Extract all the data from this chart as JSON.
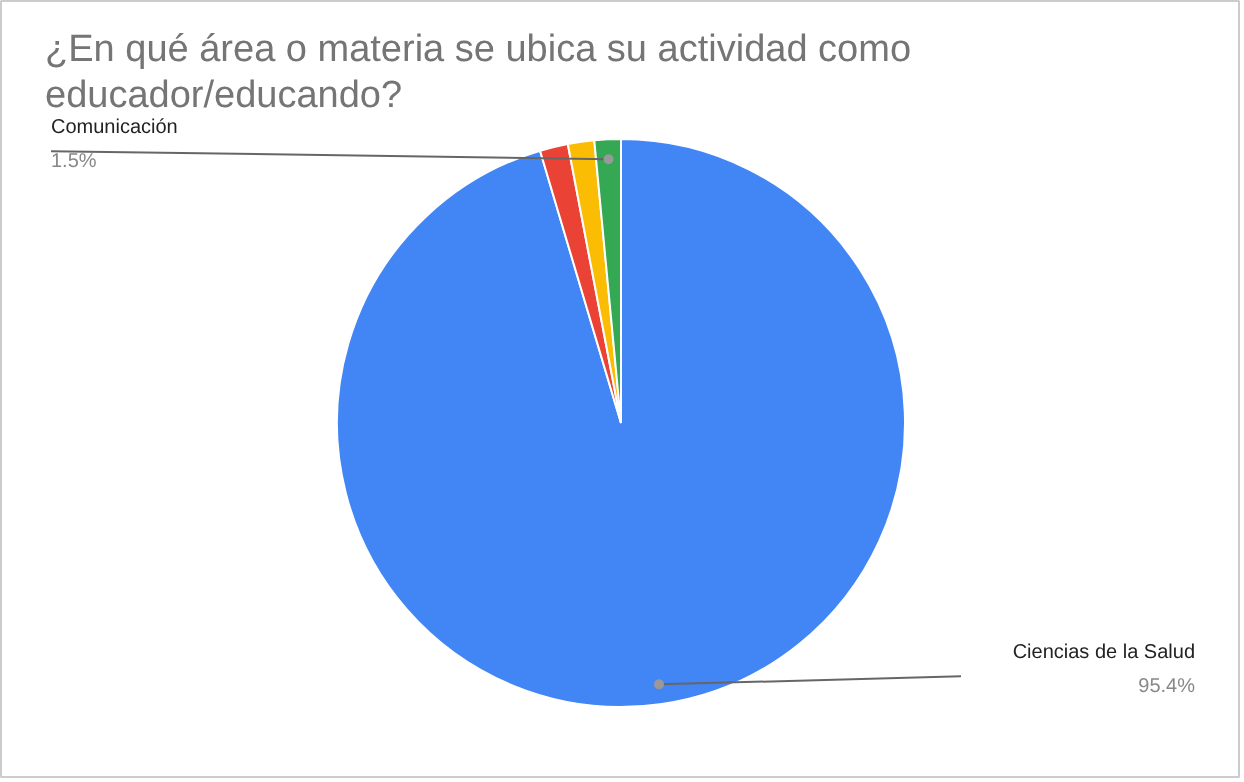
{
  "chart_data": {
    "type": "pie",
    "title": "¿En qué área o materia se ubica su actividad como educador/educando?",
    "categories": [
      "Ciencias de la Salud",
      null,
      null,
      "Comunicación"
    ],
    "values": [
      95.4,
      1.6,
      1.5,
      1.5
    ],
    "colors": [
      "#4285f4",
      "#ea4335",
      "#fbbc04",
      "#34a853"
    ],
    "value_labels": [
      "95.4%",
      null,
      null,
      "1.5%"
    ]
  }
}
